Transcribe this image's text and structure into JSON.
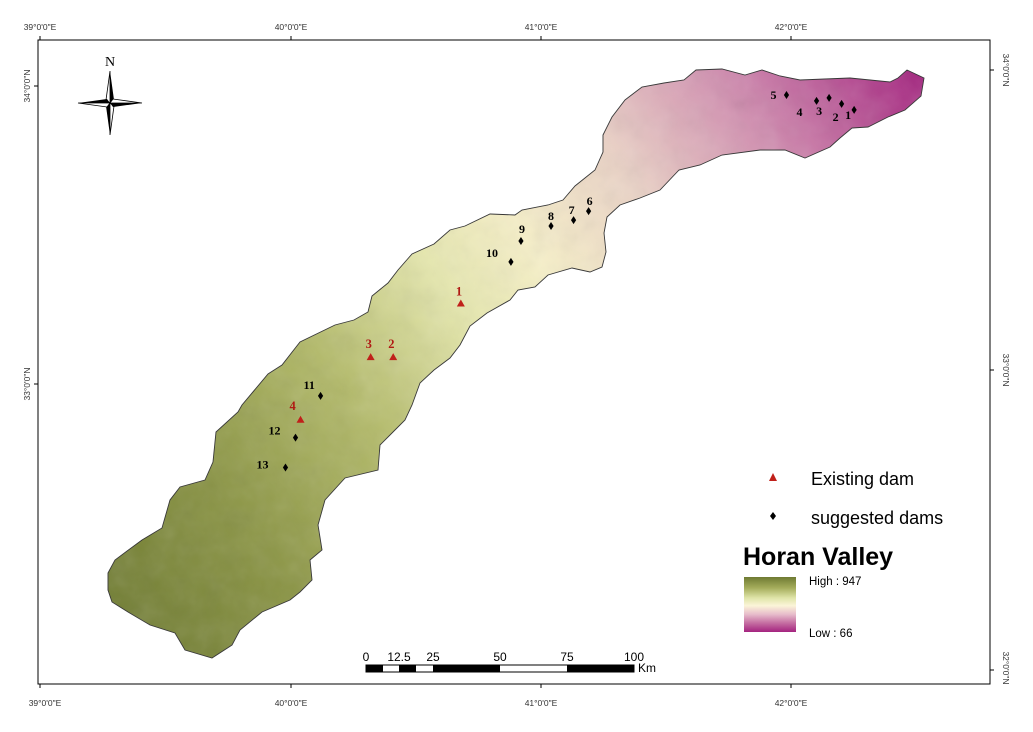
{
  "coordinates": {
    "top": [
      "39°0'0\"E",
      "40°0'0\"E",
      "41°0'0\"E",
      "42°0'0\"E"
    ],
    "bottom": [
      "39°0'0\"E",
      "40°0'0\"E",
      "41°0'0\"E",
      "42°0'0\"E"
    ],
    "left": [
      "34°0'0\"N",
      "33°0'0\"N"
    ],
    "right": [
      "34°0'0\"N",
      "33°0'0\"N",
      "32°0'0\"N"
    ]
  },
  "north_arrow": {
    "label": "N"
  },
  "existing_dams": [
    {
      "label": "1",
      "lon": 40.68,
      "lat": 33.27
    },
    {
      "label": "2",
      "lon": 40.41,
      "lat": 33.09
    },
    {
      "label": "3",
      "lon": 40.32,
      "lat": 33.09
    },
    {
      "label": "4",
      "lon": 40.04,
      "lat": 32.88
    }
  ],
  "suggested_dams": [
    {
      "label": "1",
      "lon": 42.25,
      "lat": 33.92
    },
    {
      "label": "2",
      "lon": 42.2,
      "lat": 33.94
    },
    {
      "label": "3",
      "lon": 42.15,
      "lat": 33.96
    },
    {
      "label": "4",
      "lon": 42.1,
      "lat": 33.95
    },
    {
      "label": "5",
      "lon": 41.98,
      "lat": 33.97
    },
    {
      "label": "6",
      "lon": 41.19,
      "lat": 33.58
    },
    {
      "label": "7",
      "lon": 41.13,
      "lat": 33.55
    },
    {
      "label": "8",
      "lon": 41.04,
      "lat": 33.53
    },
    {
      "label": "9",
      "lon": 40.92,
      "lat": 33.48
    },
    {
      "label": "10",
      "lon": 40.88,
      "lat": 33.41
    },
    {
      "label": "11",
      "lon": 40.12,
      "lat": 32.96
    },
    {
      "label": "12",
      "lon": 40.02,
      "lat": 32.82
    },
    {
      "label": "13",
      "lon": 39.98,
      "lat": 32.72
    }
  ],
  "legend": {
    "existing_label": "Existing dam",
    "suggested_label": "suggested dams",
    "title": "Horan Valley",
    "high_label": "High : 947",
    "low_label": "Low : 66",
    "ramp_colors": [
      "#6e7a32",
      "#a5ad5c",
      "#dfe4a8",
      "#fbf5d8",
      "#e7bccb",
      "#c46ca1",
      "#a4237f"
    ]
  },
  "scale_bar": {
    "ticks": [
      "0",
      "12.5",
      "25",
      "50",
      "75",
      "100"
    ],
    "unit": "Km"
  },
  "colors": {
    "existing_dam": "#c0201a",
    "suggested_dam": "#000000",
    "valley_outline": "#333333"
  }
}
